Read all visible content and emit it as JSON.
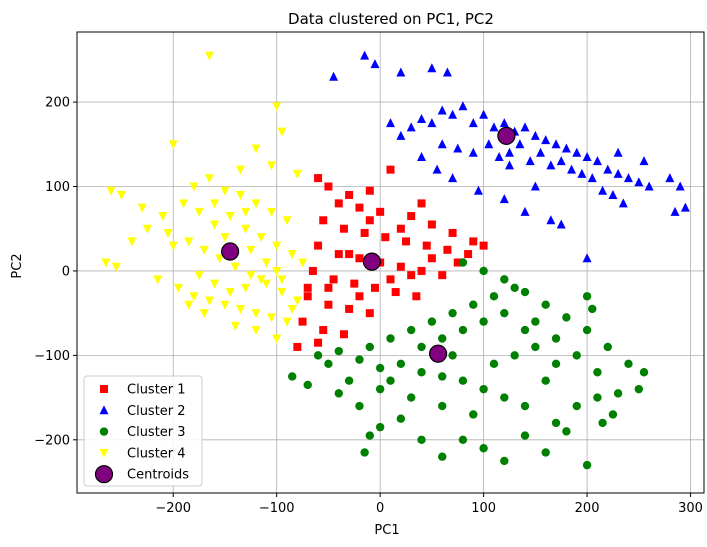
{
  "chart_data": {
    "type": "scatter",
    "title": "Data clustered on PC1, PC2",
    "xlabel": "PC1",
    "ylabel": "PC2",
    "xlim": [
      -293,
      313
    ],
    "ylim": [
      -263,
      283
    ],
    "xticks": [
      -200,
      -100,
      0,
      100,
      200,
      300
    ],
    "yticks": [
      -200,
      -100,
      0,
      100,
      200
    ],
    "grid": true,
    "legend_position": "lower-left",
    "series": [
      {
        "name": "Cluster 1",
        "marker": "square",
        "color": "#ff0000",
        "points": [
          [
            -60,
            110
          ],
          [
            -50,
            100
          ],
          [
            -30,
            90
          ],
          [
            -10,
            95
          ],
          [
            10,
            120
          ],
          [
            40,
            80
          ],
          [
            -40,
            80
          ],
          [
            -20,
            75
          ],
          [
            0,
            70
          ],
          [
            30,
            65
          ],
          [
            50,
            55
          ],
          [
            70,
            45
          ],
          [
            90,
            35
          ],
          [
            100,
            30
          ],
          [
            -55,
            60
          ],
          [
            -35,
            50
          ],
          [
            -15,
            45
          ],
          [
            5,
            40
          ],
          [
            25,
            35
          ],
          [
            45,
            30
          ],
          [
            65,
            25
          ],
          [
            85,
            20
          ],
          [
            -60,
            30
          ],
          [
            -40,
            20
          ],
          [
            -20,
            15
          ],
          [
            0,
            10
          ],
          [
            20,
            5
          ],
          [
            40,
            0
          ],
          [
            60,
            -5
          ],
          [
            -65,
            0
          ],
          [
            -45,
            -10
          ],
          [
            -25,
            -15
          ],
          [
            -5,
            -20
          ],
          [
            15,
            -25
          ],
          [
            35,
            -30
          ],
          [
            -70,
            -30
          ],
          [
            -50,
            -40
          ],
          [
            -30,
            -45
          ],
          [
            -10,
            -50
          ],
          [
            -75,
            -60
          ],
          [
            -55,
            -70
          ],
          [
            -35,
            -75
          ],
          [
            -80,
            -90
          ],
          [
            -60,
            -85
          ],
          [
            -70,
            -20
          ],
          [
            -30,
            20
          ],
          [
            10,
            -10
          ],
          [
            50,
            15
          ],
          [
            75,
            10
          ],
          [
            -10,
            60
          ],
          [
            20,
            50
          ],
          [
            -50,
            -20
          ],
          [
            -20,
            -30
          ],
          [
            30,
            -5
          ]
        ]
      },
      {
        "name": "Cluster 2",
        "marker": "triangle-up",
        "color": "#0000ff",
        "points": [
          [
            -45,
            230
          ],
          [
            -15,
            255
          ],
          [
            -5,
            245
          ],
          [
            20,
            235
          ],
          [
            50,
            240
          ],
          [
            65,
            235
          ],
          [
            10,
            175
          ],
          [
            20,
            160
          ],
          [
            30,
            170
          ],
          [
            40,
            180
          ],
          [
            50,
            175
          ],
          [
            60,
            190
          ],
          [
            70,
            185
          ],
          [
            80,
            195
          ],
          [
            90,
            175
          ],
          [
            100,
            185
          ],
          [
            110,
            170
          ],
          [
            120,
            175
          ],
          [
            130,
            165
          ],
          [
            140,
            170
          ],
          [
            150,
            160
          ],
          [
            160,
            155
          ],
          [
            170,
            150
          ],
          [
            180,
            145
          ],
          [
            190,
            140
          ],
          [
            200,
            135
          ],
          [
            210,
            130
          ],
          [
            220,
            120
          ],
          [
            230,
            115
          ],
          [
            240,
            110
          ],
          [
            250,
            105
          ],
          [
            260,
            100
          ],
          [
            280,
            110
          ],
          [
            290,
            100
          ],
          [
            60,
            150
          ],
          [
            75,
            145
          ],
          [
            90,
            140
          ],
          [
            105,
            150
          ],
          [
            115,
            135
          ],
          [
            125,
            140
          ],
          [
            135,
            150
          ],
          [
            145,
            130
          ],
          [
            155,
            140
          ],
          [
            165,
            125
          ],
          [
            175,
            130
          ],
          [
            185,
            120
          ],
          [
            195,
            115
          ],
          [
            205,
            110
          ],
          [
            215,
            95
          ],
          [
            225,
            90
          ],
          [
            235,
            80
          ],
          [
            40,
            135
          ],
          [
            55,
            120
          ],
          [
            70,
            110
          ],
          [
            95,
            95
          ],
          [
            120,
            85
          ],
          [
            140,
            70
          ],
          [
            165,
            60
          ],
          [
            175,
            55
          ],
          [
            200,
            15
          ],
          [
            285,
            70
          ],
          [
            295,
            75
          ],
          [
            125,
            125
          ],
          [
            150,
            100
          ],
          [
            230,
            140
          ],
          [
            255,
            130
          ]
        ]
      },
      {
        "name": "Cluster 3",
        "marker": "circle",
        "color": "#008000",
        "points": [
          [
            -85,
            -125
          ],
          [
            -70,
            -135
          ],
          [
            -50,
            -110
          ],
          [
            -40,
            -145
          ],
          [
            -20,
            -160
          ],
          [
            -10,
            -195
          ],
          [
            -15,
            -215
          ],
          [
            0,
            -185
          ],
          [
            20,
            -175
          ],
          [
            40,
            -200
          ],
          [
            60,
            -220
          ],
          [
            80,
            -200
          ],
          [
            100,
            -210
          ],
          [
            120,
            -225
          ],
          [
            140,
            -195
          ],
          [
            160,
            -215
          ],
          [
            200,
            -230
          ],
          [
            170,
            -180
          ],
          [
            190,
            -160
          ],
          [
            210,
            -150
          ],
          [
            230,
            -145
          ],
          [
            250,
            -140
          ],
          [
            255,
            -120
          ],
          [
            240,
            -110
          ],
          [
            220,
            -90
          ],
          [
            200,
            -70
          ],
          [
            180,
            -55
          ],
          [
            160,
            -40
          ],
          [
            140,
            -25
          ],
          [
            120,
            -10
          ],
          [
            100,
            0
          ],
          [
            80,
            10
          ],
          [
            -40,
            -95
          ],
          [
            -20,
            -105
          ],
          [
            0,
            -115
          ],
          [
            20,
            -110
          ],
          [
            40,
            -120
          ],
          [
            60,
            -125
          ],
          [
            80,
            -130
          ],
          [
            100,
            -140
          ],
          [
            120,
            -150
          ],
          [
            140,
            -160
          ],
          [
            -10,
            -90
          ],
          [
            10,
            -80
          ],
          [
            30,
            -70
          ],
          [
            50,
            -60
          ],
          [
            70,
            -50
          ],
          [
            90,
            -40
          ],
          [
            110,
            -30
          ],
          [
            130,
            -20
          ],
          [
            150,
            -60
          ],
          [
            170,
            -80
          ],
          [
            190,
            -100
          ],
          [
            210,
            -120
          ],
          [
            200,
            -30
          ],
          [
            205,
            -45
          ],
          [
            0,
            -140
          ],
          [
            30,
            -150
          ],
          [
            60,
            -160
          ],
          [
            90,
            -170
          ],
          [
            110,
            -110
          ],
          [
            130,
            -100
          ],
          [
            150,
            -90
          ],
          [
            170,
            -110
          ],
          [
            40,
            -90
          ],
          [
            60,
            -80
          ],
          [
            80,
            -70
          ],
          [
            100,
            -60
          ],
          [
            120,
            -50
          ],
          [
            140,
            -70
          ],
          [
            -60,
            -100
          ],
          [
            -30,
            -130
          ],
          [
            10,
            -130
          ],
          [
            70,
            -100
          ],
          [
            160,
            -130
          ],
          [
            180,
            -190
          ],
          [
            215,
            -180
          ],
          [
            225,
            -170
          ]
        ]
      },
      {
        "name": "Cluster 4",
        "marker": "triangle-down",
        "color": "#ffff00",
        "points": [
          [
            -165,
            255
          ],
          [
            -200,
            150
          ],
          [
            -100,
            195
          ],
          [
            -95,
            165
          ],
          [
            -105,
            125
          ],
          [
            -135,
            120
          ],
          [
            -120,
            145
          ],
          [
            -80,
            115
          ],
          [
            -260,
            95
          ],
          [
            -250,
            90
          ],
          [
            -230,
            75
          ],
          [
            -210,
            65
          ],
          [
            -190,
            80
          ],
          [
            -175,
            70
          ],
          [
            -160,
            55
          ],
          [
            -145,
            65
          ],
          [
            -130,
            50
          ],
          [
            -115,
            40
          ],
          [
            -100,
            30
          ],
          [
            -85,
            20
          ],
          [
            -75,
            10
          ],
          [
            -225,
            50
          ],
          [
            -205,
            45
          ],
          [
            -185,
            35
          ],
          [
            -170,
            25
          ],
          [
            -155,
            15
          ],
          [
            -140,
            5
          ],
          [
            -125,
            -5
          ],
          [
            -110,
            -15
          ],
          [
            -95,
            -25
          ],
          [
            -80,
            -35
          ],
          [
            -265,
            10
          ],
          [
            -255,
            5
          ],
          [
            -215,
            -10
          ],
          [
            -195,
            -20
          ],
          [
            -180,
            -30
          ],
          [
            -165,
            -35
          ],
          [
            -150,
            -40
          ],
          [
            -135,
            -45
          ],
          [
            -120,
            -50
          ],
          [
            -105,
            -55
          ],
          [
            -90,
            -60
          ],
          [
            -175,
            -5
          ],
          [
            -160,
            -15
          ],
          [
            -145,
            -25
          ],
          [
            -130,
            -20
          ],
          [
            -115,
            -10
          ],
          [
            -100,
            0
          ],
          [
            -150,
            95
          ],
          [
            -135,
            90
          ],
          [
            -120,
            80
          ],
          [
            -105,
            70
          ],
          [
            -90,
            60
          ],
          [
            -180,
            100
          ],
          [
            -165,
            110
          ],
          [
            -150,
            40
          ],
          [
            -125,
            25
          ],
          [
            -110,
            10
          ],
          [
            -95,
            -10
          ],
          [
            -185,
            -40
          ],
          [
            -170,
            -50
          ],
          [
            -140,
            -65
          ],
          [
            -120,
            -70
          ],
          [
            -100,
            -80
          ],
          [
            -85,
            -45
          ],
          [
            -200,
            30
          ],
          [
            -240,
            35
          ],
          [
            -160,
            80
          ],
          [
            -130,
            70
          ]
        ]
      },
      {
        "name": "Centroids",
        "marker": "big-circle",
        "color": "#800080",
        "points": [
          [
            -145,
            23
          ],
          [
            -8,
            11
          ],
          [
            56,
            -98
          ],
          [
            122,
            160
          ]
        ]
      }
    ]
  }
}
